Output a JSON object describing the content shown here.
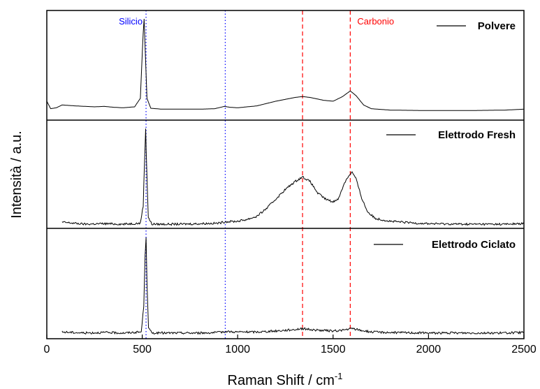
{
  "chart_data": {
    "type": "line",
    "xlabel": "Raman Shift / cm",
    "xlabel_sup": "-1",
    "ylabel": "Intensità / a.u.",
    "xlim": [
      0,
      2500
    ],
    "x_ticks": [
      "0",
      "500",
      "1000",
      "1500",
      "2000",
      "2500"
    ],
    "x_tick_values": [
      0,
      500,
      1000,
      1500,
      2000,
      2500
    ],
    "legend_placement": "top-right of each panel",
    "grid": false,
    "reference_lines": [
      {
        "label": "Silicio",
        "x": 520,
        "style": "dotted",
        "color": "#0000ff"
      },
      {
        "label": "",
        "x": 935,
        "style": "dotted",
        "color": "#0000ff"
      },
      {
        "label": "",
        "x": 1340,
        "style": "dashed",
        "color": "#ff0000"
      },
      {
        "label": "Carbonio",
        "x": 1590,
        "style": "dashed",
        "color": "#ff0000"
      }
    ],
    "series": [
      {
        "name": "Polvere",
        "ylim": [
          0,
          1
        ],
        "points": [
          [
            0,
            0.12
          ],
          [
            20,
            0.04
          ],
          [
            50,
            0.05
          ],
          [
            80,
            0.08
          ],
          [
            150,
            0.07
          ],
          [
            250,
            0.06
          ],
          [
            300,
            0.065
          ],
          [
            350,
            0.055
          ],
          [
            400,
            0.05
          ],
          [
            460,
            0.06
          ],
          [
            490,
            0.15
          ],
          [
            505,
            0.85
          ],
          [
            510,
            1.0
          ],
          [
            515,
            0.7
          ],
          [
            525,
            0.15
          ],
          [
            545,
            0.045
          ],
          [
            600,
            0.035
          ],
          [
            700,
            0.035
          ],
          [
            800,
            0.035
          ],
          [
            880,
            0.04
          ],
          [
            900,
            0.05
          ],
          [
            930,
            0.065
          ],
          [
            960,
            0.055
          ],
          [
            1000,
            0.05
          ],
          [
            1100,
            0.07
          ],
          [
            1200,
            0.12
          ],
          [
            1300,
            0.16
          ],
          [
            1340,
            0.17
          ],
          [
            1380,
            0.16
          ],
          [
            1450,
            0.13
          ],
          [
            1500,
            0.12
          ],
          [
            1550,
            0.17
          ],
          [
            1590,
            0.23
          ],
          [
            1620,
            0.18
          ],
          [
            1660,
            0.08
          ],
          [
            1700,
            0.04
          ],
          [
            1800,
            0.025
          ],
          [
            2000,
            0.02
          ],
          [
            2200,
            0.02
          ],
          [
            2400,
            0.025
          ],
          [
            2500,
            0.035
          ]
        ]
      },
      {
        "name": "Elettrodo Fresh",
        "ylim": [
          0,
          1
        ],
        "points": [
          [
            80,
            0.03
          ],
          [
            200,
            0.01
          ],
          [
            300,
            0.015
          ],
          [
            400,
            0.01
          ],
          [
            490,
            0.02
          ],
          [
            505,
            0.2
          ],
          [
            512,
            0.65
          ],
          [
            518,
            1.0
          ],
          [
            524,
            0.55
          ],
          [
            532,
            0.08
          ],
          [
            550,
            0.01
          ],
          [
            700,
            0.01
          ],
          [
            800,
            0.015
          ],
          [
            900,
            0.02
          ],
          [
            935,
            0.035
          ],
          [
            1000,
            0.04
          ],
          [
            1050,
            0.06
          ],
          [
            1100,
            0.09
          ],
          [
            1150,
            0.17
          ],
          [
            1200,
            0.27
          ],
          [
            1250,
            0.37
          ],
          [
            1300,
            0.45
          ],
          [
            1340,
            0.5
          ],
          [
            1380,
            0.45
          ],
          [
            1420,
            0.33
          ],
          [
            1460,
            0.27
          ],
          [
            1500,
            0.24
          ],
          [
            1530,
            0.28
          ],
          [
            1560,
            0.44
          ],
          [
            1585,
            0.52
          ],
          [
            1600,
            0.55
          ],
          [
            1620,
            0.48
          ],
          [
            1650,
            0.28
          ],
          [
            1680,
            0.14
          ],
          [
            1720,
            0.07
          ],
          [
            1800,
            0.04
          ],
          [
            1900,
            0.025
          ],
          [
            2000,
            0.015
          ],
          [
            2200,
            0.01
          ],
          [
            2400,
            0.01
          ],
          [
            2500,
            0.015
          ]
        ]
      },
      {
        "name": "Elettrodo Ciclato",
        "ylim": [
          0,
          1
        ],
        "points": [
          [
            80,
            0.04
          ],
          [
            200,
            0.03
          ],
          [
            300,
            0.035
          ],
          [
            400,
            0.03
          ],
          [
            495,
            0.04
          ],
          [
            508,
            0.3
          ],
          [
            515,
            0.8
          ],
          [
            520,
            1.0
          ],
          [
            525,
            0.55
          ],
          [
            533,
            0.08
          ],
          [
            550,
            0.03
          ],
          [
            700,
            0.03
          ],
          [
            800,
            0.03
          ],
          [
            900,
            0.035
          ],
          [
            935,
            0.045
          ],
          [
            1000,
            0.04
          ],
          [
            1100,
            0.04
          ],
          [
            1200,
            0.05
          ],
          [
            1300,
            0.065
          ],
          [
            1340,
            0.075
          ],
          [
            1400,
            0.06
          ],
          [
            1500,
            0.05
          ],
          [
            1560,
            0.06
          ],
          [
            1600,
            0.075
          ],
          [
            1650,
            0.055
          ],
          [
            1700,
            0.04
          ],
          [
            1800,
            0.035
          ],
          [
            2000,
            0.03
          ],
          [
            2200,
            0.03
          ],
          [
            2400,
            0.03
          ],
          [
            2500,
            0.035
          ]
        ]
      }
    ]
  }
}
